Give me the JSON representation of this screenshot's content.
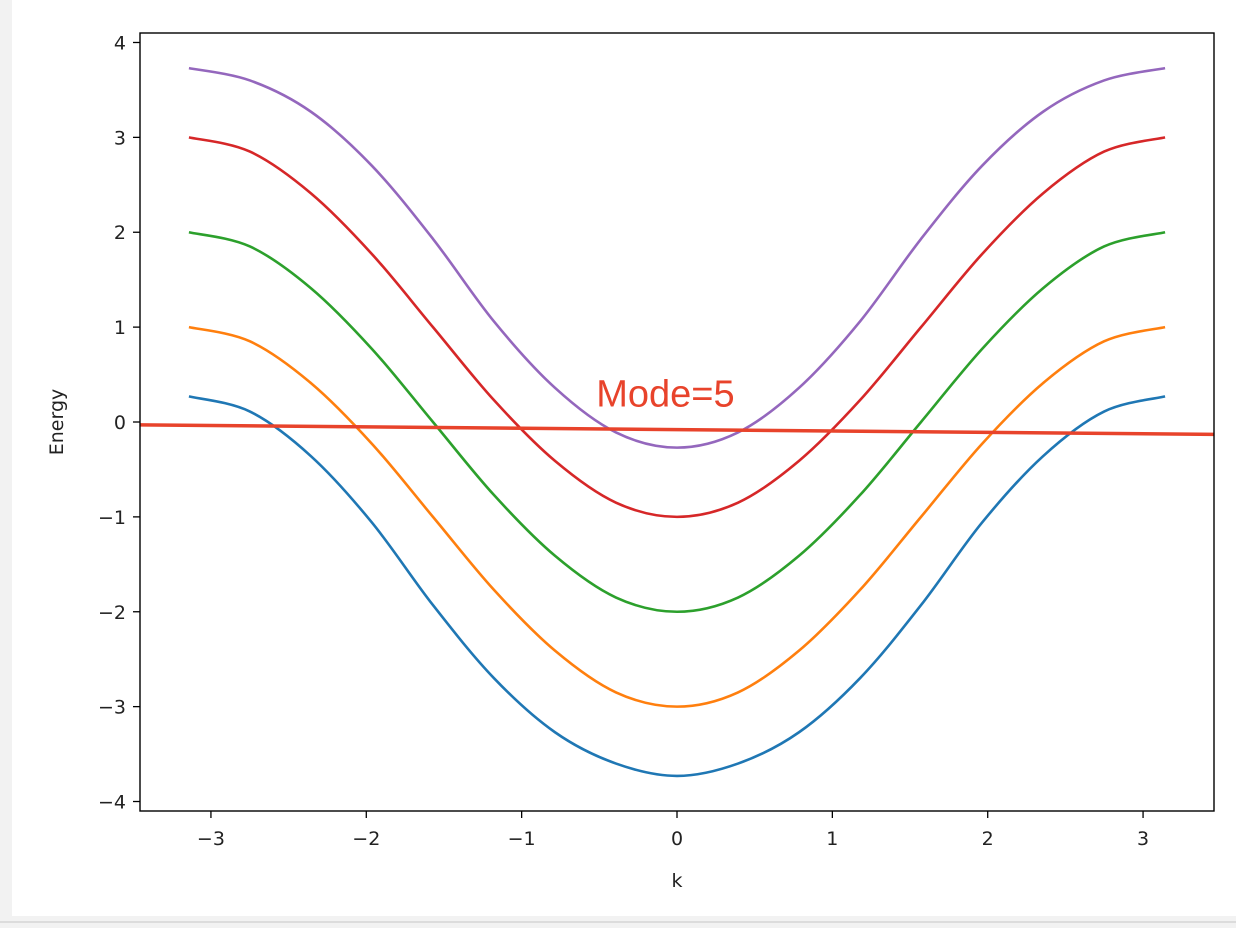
{
  "chart_data": {
    "type": "line",
    "title": "",
    "xlabel": "k",
    "ylabel": "Energy",
    "xlim": [
      -3.4566,
      3.4566
    ],
    "ylim": [
      -4.1,
      4.1
    ],
    "xticks": [
      -3,
      -2,
      -1,
      0,
      1,
      2,
      3
    ],
    "yticks": [
      4,
      3,
      2,
      1,
      0,
      -1,
      -2,
      -3,
      -4
    ],
    "xtick_labels": [
      "−3",
      "−2",
      "−1",
      "0",
      "1",
      "2",
      "3"
    ],
    "ytick_labels": [
      "4",
      "3",
      "2",
      "1",
      "0",
      "−1",
      "−2",
      "−3",
      "−4"
    ],
    "grid": false,
    "legend": "none",
    "series": [
      {
        "color": "#1f77b4",
        "x": [
          -3.1416,
          -2.7489,
          -2.3562,
          -1.9635,
          -1.5708,
          -1.1781,
          -0.7854,
          -0.3927,
          0.0,
          0.3927,
          0.7854,
          1.1781,
          1.5708,
          1.9635,
          2.3562,
          2.7489,
          3.1416
        ],
        "y": [
          0.27,
          0.11,
          -0.36,
          -1.06,
          -1.93,
          -2.7,
          -3.27,
          -3.6,
          -3.73,
          -3.6,
          -3.27,
          -2.7,
          -1.93,
          -1.06,
          -0.36,
          0.11,
          0.27
        ]
      },
      {
        "color": "#ff7f0e",
        "x": [
          -3.1416,
          -2.7489,
          -2.3562,
          -1.9635,
          -1.5708,
          -1.1781,
          -0.7854,
          -0.3927,
          0.0,
          0.3927,
          0.7854,
          1.1781,
          1.5708,
          1.9635,
          2.3562,
          2.7489,
          3.1416
        ],
        "y": [
          1.0,
          0.85,
          0.41,
          -0.23,
          -1.0,
          -1.77,
          -2.41,
          -2.85,
          -3.0,
          -2.85,
          -2.41,
          -1.77,
          -1.0,
          -0.23,
          0.41,
          0.85,
          1.0
        ]
      },
      {
        "color": "#2ca02c",
        "x": [
          -3.1416,
          -2.7489,
          -2.3562,
          -1.9635,
          -1.5708,
          -1.1781,
          -0.7854,
          -0.3927,
          0.0,
          0.3927,
          0.7854,
          1.1781,
          1.5708,
          1.9635,
          2.3562,
          2.7489,
          3.1416
        ],
        "y": [
          2.0,
          1.85,
          1.41,
          0.77,
          0.0,
          -0.77,
          -1.41,
          -1.85,
          -2.0,
          -1.85,
          -1.41,
          -0.77,
          0.0,
          0.77,
          1.41,
          1.85,
          2.0
        ]
      },
      {
        "color": "#d62728",
        "x": [
          -3.1416,
          -2.7489,
          -2.3562,
          -1.9635,
          -1.5708,
          -1.1781,
          -0.7854,
          -0.3927,
          0.0,
          0.3927,
          0.7854,
          1.1781,
          1.5708,
          1.9635,
          2.3562,
          2.7489,
          3.1416
        ],
        "y": [
          3.0,
          2.85,
          2.41,
          1.77,
          1.0,
          0.23,
          -0.41,
          -0.85,
          -1.0,
          -0.85,
          -0.41,
          0.23,
          1.0,
          1.77,
          2.41,
          2.85,
          3.0
        ]
      },
      {
        "color": "#9467bd",
        "x": [
          -3.1416,
          -2.7489,
          -2.3562,
          -1.9635,
          -1.5708,
          -1.1781,
          -0.7854,
          -0.3927,
          0.0,
          0.3927,
          0.7854,
          1.1781,
          1.5708,
          1.9635,
          2.3562,
          2.7489,
          3.1416
        ],
        "y": [
          3.73,
          3.6,
          3.27,
          2.7,
          1.93,
          1.06,
          0.36,
          -0.11,
          -0.27,
          -0.11,
          0.36,
          1.06,
          1.93,
          2.7,
          3.27,
          3.6,
          3.73
        ]
      }
    ],
    "annotation": {
      "text": "Mode=5",
      "color": "#e8432b",
      "x": -0.52,
      "y": 0.3,
      "line": {
        "color": "#e8432b",
        "x": [
          -3.4566,
          3.4566
        ],
        "y": [
          -0.03,
          -0.13
        ]
      }
    }
  }
}
